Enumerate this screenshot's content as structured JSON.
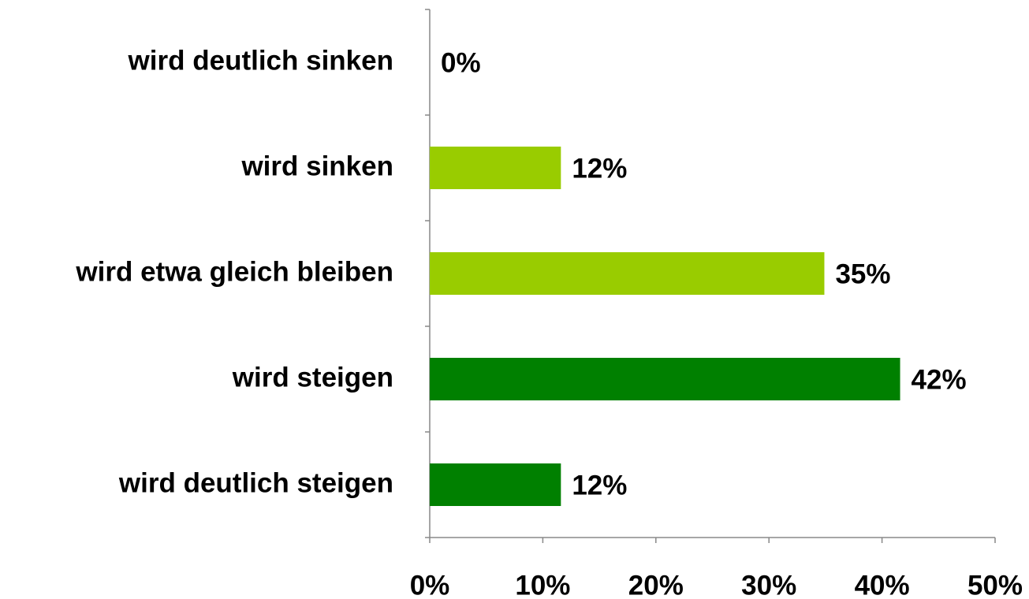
{
  "chart_data": {
    "type": "hbar",
    "categories": [
      "wird deutlich sinken",
      "wird sinken",
      "wird etwa gleich bleiben",
      "wird steigen",
      "wird deutlich steigen"
    ],
    "values": [
      0,
      11.6,
      34.9,
      41.6,
      11.6
    ],
    "value_labels": [
      "0%",
      "12%",
      "35%",
      "42%",
      "12%"
    ],
    "colors": [
      "#99cc00",
      "#99cc00",
      "#99cc00",
      "#008000",
      "#008000"
    ],
    "xlim": [
      0,
      50
    ],
    "xticks": [
      {
        "value": 0,
        "label": "0%"
      },
      {
        "value": 10,
        "label": "10%"
      },
      {
        "value": 20,
        "label": "20%"
      },
      {
        "value": 30,
        "label": "30%"
      },
      {
        "value": 40,
        "label": "40%"
      },
      {
        "value": 50,
        "label": "50%"
      }
    ]
  }
}
